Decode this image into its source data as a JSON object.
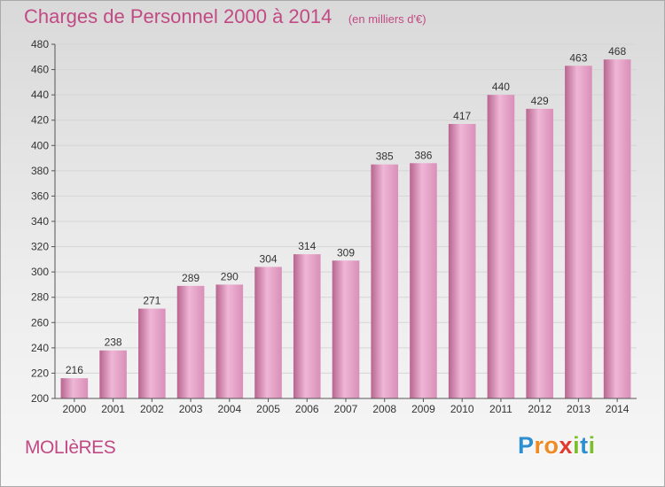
{
  "chart_data": {
    "type": "bar",
    "title": "Charges de Personnel 2000 à 2014",
    "subtitle": "(en milliers d'€)",
    "xlabel": "",
    "ylabel": "",
    "categories": [
      "2000",
      "2001",
      "2002",
      "2003",
      "2004",
      "2005",
      "2006",
      "2007",
      "2008",
      "2009",
      "2010",
      "2011",
      "2012",
      "2013",
      "2014"
    ],
    "values": [
      216,
      238,
      271,
      289,
      290,
      304,
      314,
      309,
      385,
      386,
      417,
      440,
      429,
      463,
      468
    ],
    "ylim": [
      200,
      480
    ],
    "yticks": [
      200,
      220,
      240,
      260,
      280,
      300,
      320,
      340,
      360,
      380,
      400,
      420,
      440,
      460,
      480
    ],
    "grid": true,
    "legend": "none",
    "colors": {
      "bar": "#d98fb8",
      "bar_light": "#efb6d6",
      "bar_dark": "#b8658f",
      "grid": "#d5d5d5",
      "title": "#c24a84"
    }
  },
  "commune": "MOLIèRES",
  "logo": {
    "letters": [
      {
        "char": "P",
        "color": "#2d8ed0"
      },
      {
        "char": "r",
        "color": "#f08a24"
      },
      {
        "char": "o",
        "color": "#f08a24"
      },
      {
        "char": "x",
        "color": "#e23a2e"
      },
      {
        "char": "i",
        "color": "#7cbf2c"
      },
      {
        "char": "t",
        "color": "#2d8ed0"
      },
      {
        "char": "i",
        "color": "#7cbf2c"
      }
    ]
  }
}
